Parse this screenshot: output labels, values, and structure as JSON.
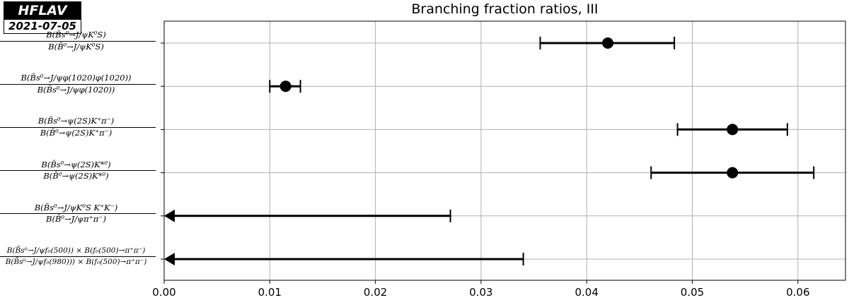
{
  "badge": {
    "name": "HFLAV",
    "date": "2021-07-05"
  },
  "chart_data": {
    "type": "scatter",
    "title": "Branching fraction ratios, III",
    "xlabel": "",
    "ylabel": "",
    "xlim": [
      0.0,
      0.0645
    ],
    "x_ticks": [
      0.0,
      0.01,
      0.02,
      0.03,
      0.04,
      0.05,
      0.06
    ],
    "x_tick_labels": [
      "0.00",
      "0.01",
      "0.02",
      "0.03",
      "0.04",
      "0.05",
      "0.06"
    ],
    "grid": true,
    "legend": "none",
    "colors": {
      "marker": "#000000",
      "grid": "#b0b0b0"
    },
    "measurements": [
      {
        "label_num": "B(B̄s⁰→J/ψK⁰S)",
        "label_den": "B(B̄⁰→J/ψK⁰S)",
        "kind": "value",
        "value": 0.042,
        "low": 0.0356,
        "high": 0.0483
      },
      {
        "label_num": "B(B̄s⁰→J/ψφ(1020)φ(1020))",
        "label_den": "B(B̄s⁰→J/ψφ(1020))",
        "kind": "value",
        "value": 0.0115,
        "low": 0.01,
        "high": 0.0129
      },
      {
        "label_num": "B(B̄s⁰→ψ(2S)K⁺π⁻)",
        "label_den": "B(B̄⁰→ψ(2S)K⁺π⁻)",
        "kind": "value",
        "value": 0.0538,
        "low": 0.0486,
        "high": 0.059
      },
      {
        "label_num": "B(B̄s⁰→ψ(2S)K*⁰)",
        "label_den": "B(B̄⁰→ψ(2S)K*⁰)",
        "kind": "value",
        "value": 0.0538,
        "low": 0.0461,
        "high": 0.0615
      },
      {
        "label_num": "B(B̄s⁰→J/ψK⁰S K⁺K⁻)",
        "label_den": "B(B̄⁰→J/ψπ⁺π⁻)",
        "kind": "upper_limit",
        "high": 0.0271
      },
      {
        "label_num": "B(B̄s⁰→J/ψf₀(500)) × B(f₀(500)→π⁺π⁻)",
        "label_den": "B(B̄s⁰→J/ψf₀(980))) × B(f₀(500)→π⁺π⁻)",
        "kind": "upper_limit",
        "high": 0.034
      }
    ]
  }
}
